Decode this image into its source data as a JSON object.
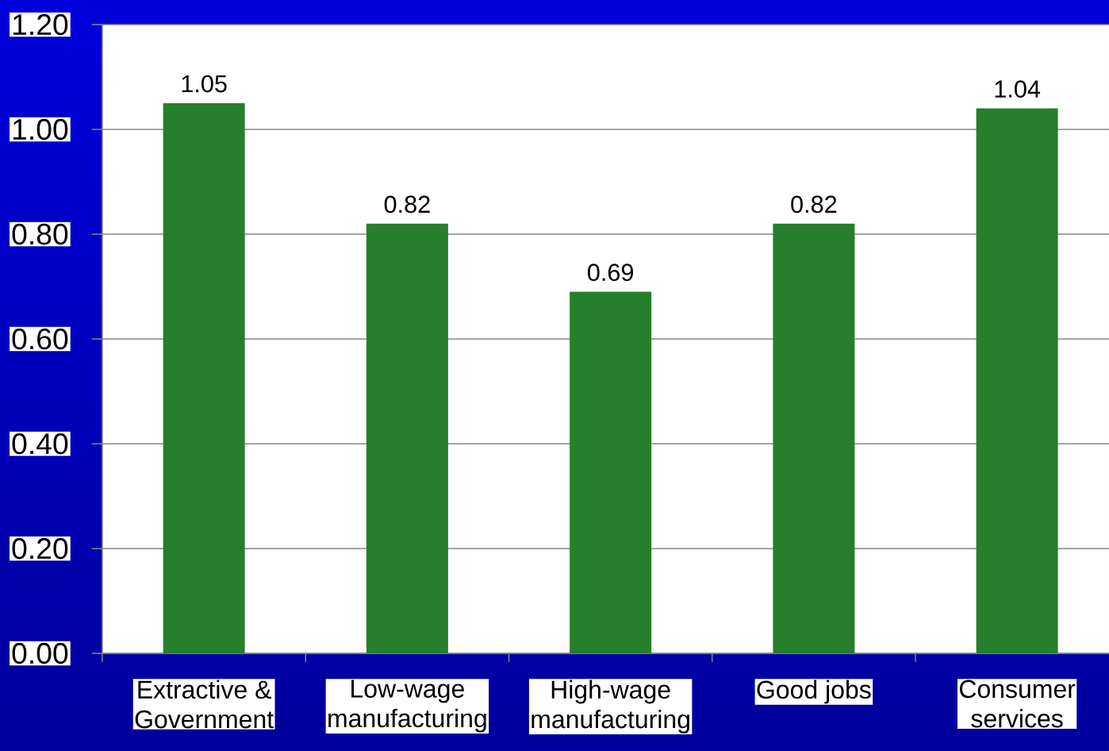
{
  "chart_data": {
    "type": "bar",
    "categories": [
      "Extractive & Government",
      "Low-wage manufacturing",
      "High-wage manufacturing",
      "Good jobs",
      "Consumer services"
    ],
    "values": [
      1.05,
      0.82,
      0.69,
      0.82,
      1.04
    ],
    "color": "#267f2a",
    "ylim": [
      0,
      1.2
    ],
    "yticks": [
      {
        "value": 0,
        "label": "0.00"
      },
      {
        "value": 0.2,
        "label": "0.20"
      },
      {
        "value": 0.4,
        "label": "0.40"
      },
      {
        "value": 0.6,
        "label": "0.60"
      },
      {
        "value": 0.8,
        "label": "0.80"
      },
      {
        "value": 1.0,
        "label": "1.00"
      },
      {
        "value": 1.2,
        "label": "1.20"
      }
    ],
    "grid": "y",
    "data_labels": true
  }
}
